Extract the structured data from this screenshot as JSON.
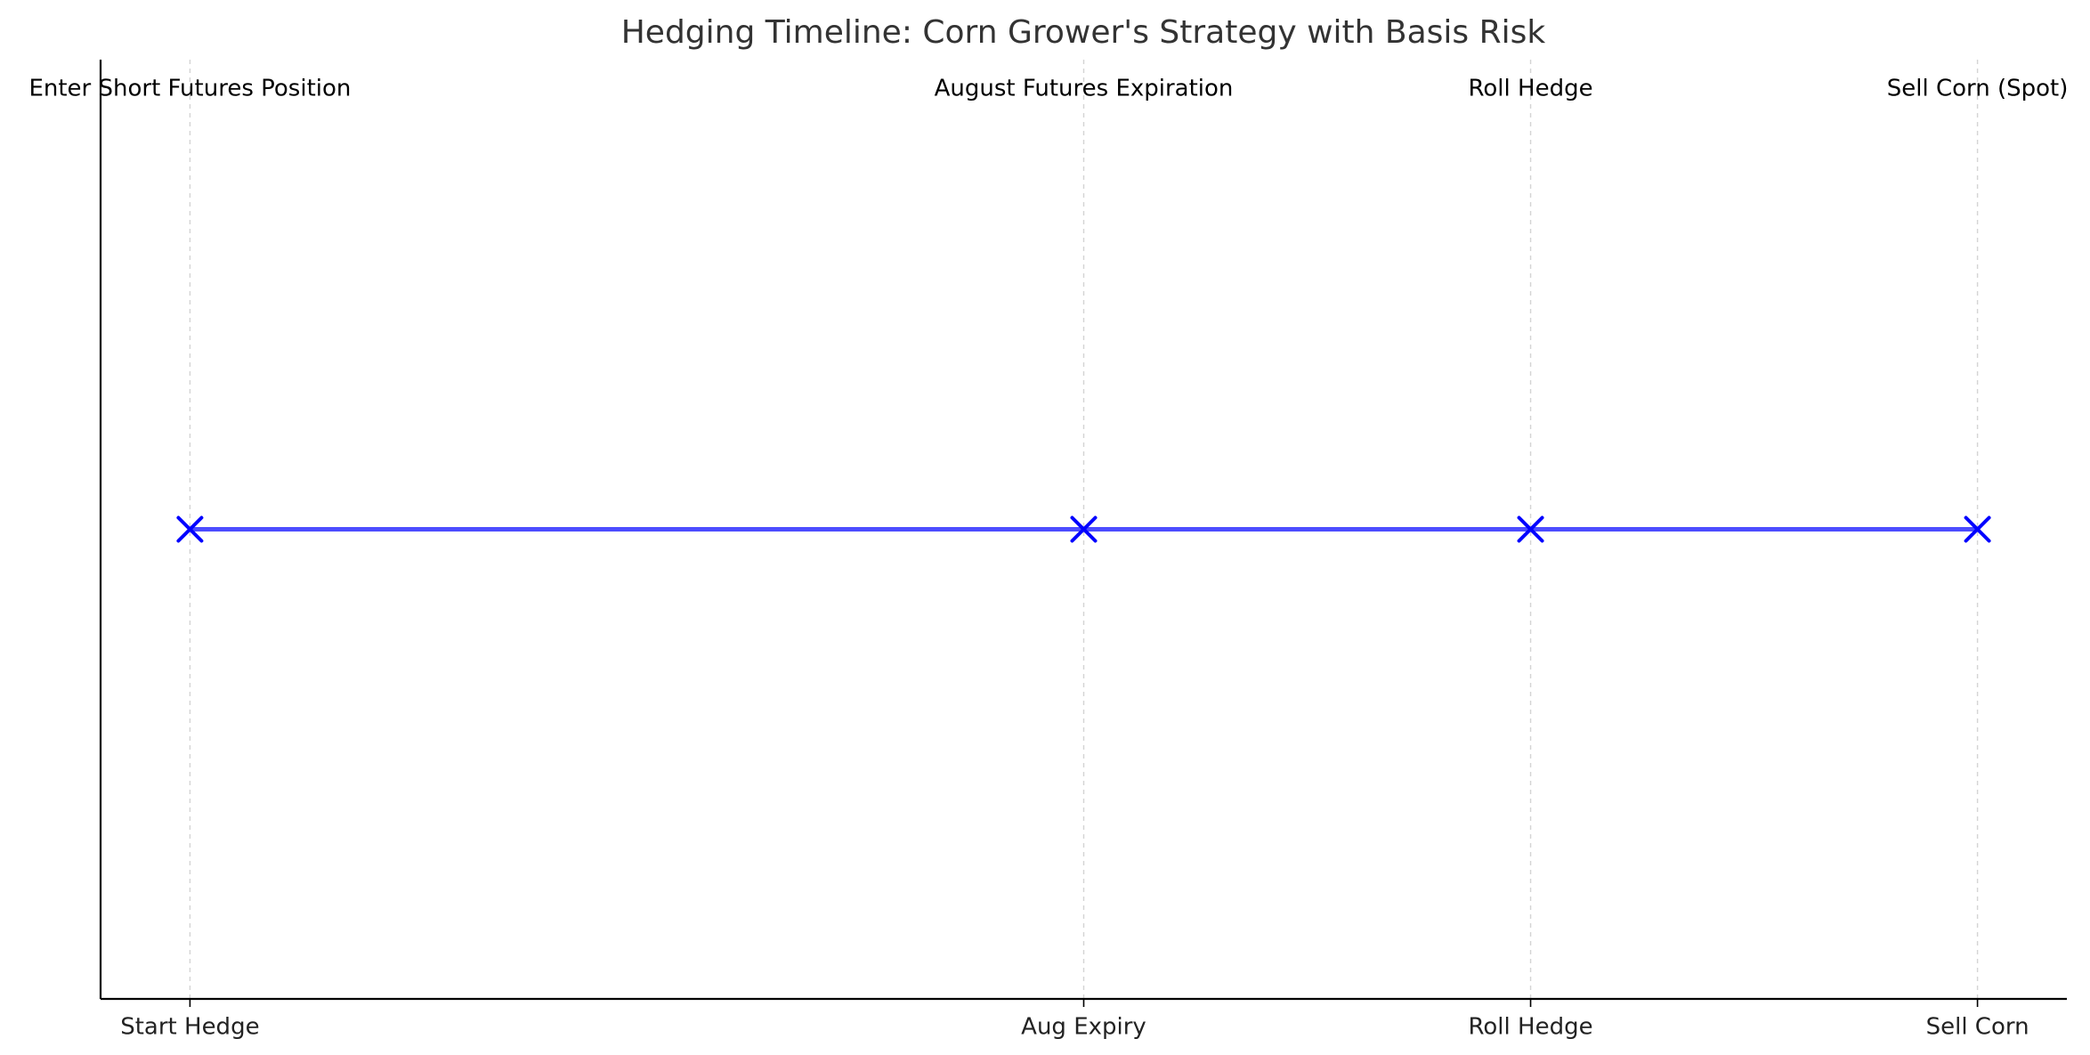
{
  "chart_data": {
    "type": "line",
    "title": "Hedging Timeline: Corn Grower's Strategy with Basis Risk",
    "xlabel": "",
    "ylabel": "",
    "xlim": [
      -0.2,
      4.2
    ],
    "ylim": [
      0,
      2
    ],
    "grid": "vertical-dashed",
    "legend": "none",
    "color": "#0000ff",
    "marker": "x",
    "events": [
      {
        "x": 0,
        "y": 1,
        "tick_label": "Start Hedge",
        "annotation": "Enter Short Futures Position"
      },
      {
        "x": 2,
        "y": 1,
        "tick_label": "Aug Expiry",
        "annotation": "August Futures Expiration"
      },
      {
        "x": 3,
        "y": 1,
        "tick_label": "Roll Hedge",
        "annotation": "Roll Hedge"
      },
      {
        "x": 4,
        "y": 1,
        "tick_label": "Sell Corn",
        "annotation": "Sell Corn (Spot)"
      }
    ]
  }
}
